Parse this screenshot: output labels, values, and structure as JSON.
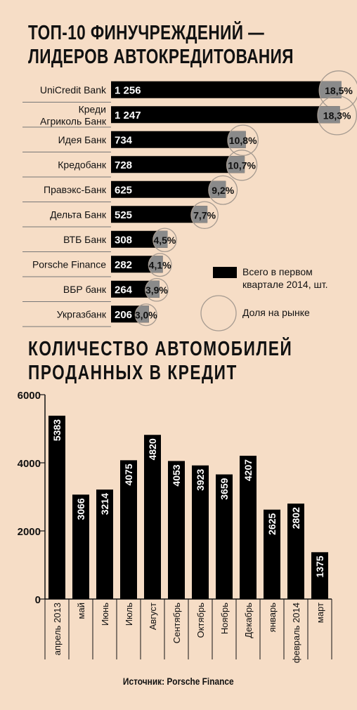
{
  "title_top_line1": "ТОП-10 ФИНУЧРЕЖДЕНИЙ —",
  "title_top_line2": "ЛИДЕРОВ АВТОКРЕДИТОВАНИЯ",
  "title_bottom_line1": "КОЛИЧЕСТВО АВТОМОБИЛЕЙ",
  "title_bottom_line2": "ПРОДАННЫХ В КРЕДИТ",
  "legend": {
    "total_label": "Всего в первом квартале 2014, шт.",
    "share_label": "Доля на рынке"
  },
  "source": "Источник:  Porsche Finance",
  "colors": {
    "background": "#f6ddc6",
    "bar": "#000000",
    "circle_fill": "#8a8a8a",
    "circle_stroke": "#a59a90"
  },
  "chart_data": [
    {
      "type": "bar",
      "orientation": "horizontal",
      "categories": [
        "UniCredit Bank",
        "Креди Агриколь Банк",
        "Идея Банк",
        "Кредобанк",
        "Правэкс-Банк",
        "Дельта Банк",
        "ВТБ Банк",
        "Porsche Finance",
        "ВБР банк",
        "Укргазбанк"
      ],
      "category_lines": [
        [
          "UniCredit Bank"
        ],
        [
          "Креди",
          "Агриколь Банк"
        ],
        [
          "Идея Банк"
        ],
        [
          "Кредобанк"
        ],
        [
          "Правэкс-Банк"
        ],
        [
          "Дельта Банк"
        ],
        [
          "ВТБ Банк"
        ],
        [
          "Porsche Finance"
        ],
        [
          "ВБР банк"
        ],
        [
          "Укргазбанк"
        ]
      ],
      "values": [
        1256,
        1247,
        734,
        728,
        625,
        525,
        308,
        282,
        264,
        206
      ],
      "value_labels": [
        "1 256",
        "1 247",
        "734",
        "728",
        "625",
        "525",
        "308",
        "282",
        "264",
        "206"
      ],
      "share": [
        18.5,
        18.3,
        10.8,
        10.7,
        9.2,
        7.7,
        4.5,
        4.1,
        3.9,
        3.0
      ],
      "share_labels": [
        "18,5%",
        "18,3%",
        "10,8%",
        "10,7%",
        "9,2%",
        "7,7%",
        "4,5%",
        "4,1%",
        "3,9%",
        "3,0%"
      ],
      "legend_position": "right"
    },
    {
      "type": "bar",
      "categories": [
        "апрель 2013",
        "май",
        "Июнь",
        "Июль",
        "Август",
        "Сентябрь",
        "Октябрь",
        "Ноябрь",
        "Декабрь",
        "январь",
        "февраль 2014",
        "март"
      ],
      "values": [
        5383,
        3066,
        3214,
        4075,
        4820,
        4053,
        3923,
        3659,
        4207,
        2625,
        2802,
        1375
      ],
      "ylim": [
        0,
        6000
      ],
      "yticks": [
        0,
        2000,
        4000,
        6000
      ],
      "grid": false
    }
  ]
}
